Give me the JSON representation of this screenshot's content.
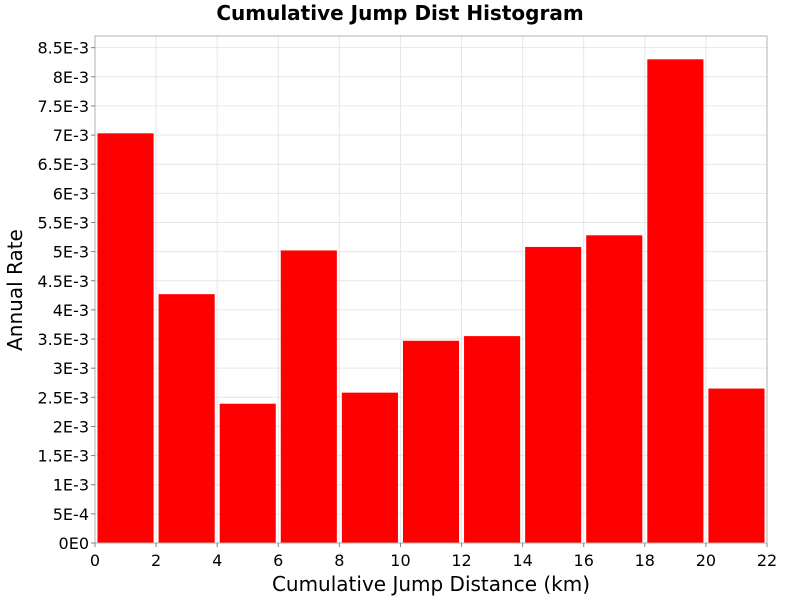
{
  "chart_data": {
    "type": "bar",
    "title": "Cumulative Jump Dist Histogram",
    "xlabel": "Cumulative Jump Distance (km)",
    "ylabel": "Annual Rate",
    "xlim": [
      0,
      22
    ],
    "ylim": [
      0,
      0.0087
    ],
    "grid": true,
    "bin_width": 2,
    "bins": [
      {
        "start": 0,
        "end": 2,
        "value": 0.00703
      },
      {
        "start": 2,
        "end": 4,
        "value": 0.00427
      },
      {
        "start": 4,
        "end": 6,
        "value": 0.00239
      },
      {
        "start": 6,
        "end": 8,
        "value": 0.00502
      },
      {
        "start": 8,
        "end": 10,
        "value": 0.00258
      },
      {
        "start": 10,
        "end": 12,
        "value": 0.00347
      },
      {
        "start": 12,
        "end": 14,
        "value": 0.00355
      },
      {
        "start": 14,
        "end": 16,
        "value": 0.00508
      },
      {
        "start": 16,
        "end": 18,
        "value": 0.00528
      },
      {
        "start": 18,
        "end": 20,
        "value": 0.0083
      },
      {
        "start": 20,
        "end": 22,
        "value": 0.00265
      }
    ],
    "bar_color": "#ff0000",
    "x_ticks": [
      {
        "value": 0,
        "label": "0"
      },
      {
        "value": 2,
        "label": "2"
      },
      {
        "value": 4,
        "label": "4"
      },
      {
        "value": 6,
        "label": "6"
      },
      {
        "value": 8,
        "label": "8"
      },
      {
        "value": 10,
        "label": "10"
      },
      {
        "value": 12,
        "label": "12"
      },
      {
        "value": 14,
        "label": "14"
      },
      {
        "value": 16,
        "label": "16"
      },
      {
        "value": 18,
        "label": "18"
      },
      {
        "value": 20,
        "label": "20"
      },
      {
        "value": 22,
        "label": "22"
      }
    ],
    "y_ticks": [
      {
        "value": 0,
        "label": "0E0"
      },
      {
        "value": 0.0005,
        "label": "5E-4"
      },
      {
        "value": 0.001,
        "label": "1E-3"
      },
      {
        "value": 0.0015,
        "label": "1.5E-3"
      },
      {
        "value": 0.002,
        "label": "2E-3"
      },
      {
        "value": 0.0025,
        "label": "2.5E-3"
      },
      {
        "value": 0.003,
        "label": "3E-3"
      },
      {
        "value": 0.0035,
        "label": "3.5E-3"
      },
      {
        "value": 0.004,
        "label": "4E-3"
      },
      {
        "value": 0.0045,
        "label": "4.5E-3"
      },
      {
        "value": 0.005,
        "label": "5E-3"
      },
      {
        "value": 0.0055,
        "label": "5.5E-3"
      },
      {
        "value": 0.006,
        "label": "6E-3"
      },
      {
        "value": 0.0065,
        "label": "6.5E-3"
      },
      {
        "value": 0.007,
        "label": "7E-3"
      },
      {
        "value": 0.0075,
        "label": "7.5E-3"
      },
      {
        "value": 0.008,
        "label": "8E-3"
      },
      {
        "value": 0.0085,
        "label": "8.5E-3"
      }
    ]
  }
}
